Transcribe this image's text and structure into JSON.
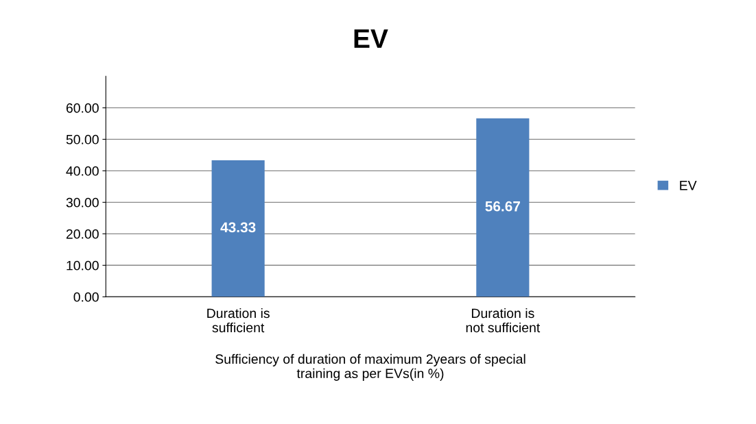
{
  "chart_data": {
    "type": "bar",
    "title": "EV",
    "categories": [
      "Duration is\nsufficient",
      "Duration is\nnot sufficient"
    ],
    "series": [
      {
        "name": "EV",
        "color": "#4f81bd",
        "values": [
          43.33,
          56.67
        ]
      }
    ],
    "xlabel": "Sufficiency of duration of maximum 2years of special\ntraining as per EVs(in %)",
    "ylim": [
      0,
      70
    ],
    "yticks": [
      {
        "value": 0,
        "label": "0.00"
      },
      {
        "value": 10,
        "label": "10.00"
      },
      {
        "value": 20,
        "label": "20.00"
      },
      {
        "value": 30,
        "label": "30.00"
      },
      {
        "value": 40,
        "label": "40.00"
      },
      {
        "value": 50,
        "label": "50.00"
      },
      {
        "value": 60,
        "label": "60.00"
      }
    ],
    "grid": "y",
    "legend": "right",
    "data_labels": true
  }
}
